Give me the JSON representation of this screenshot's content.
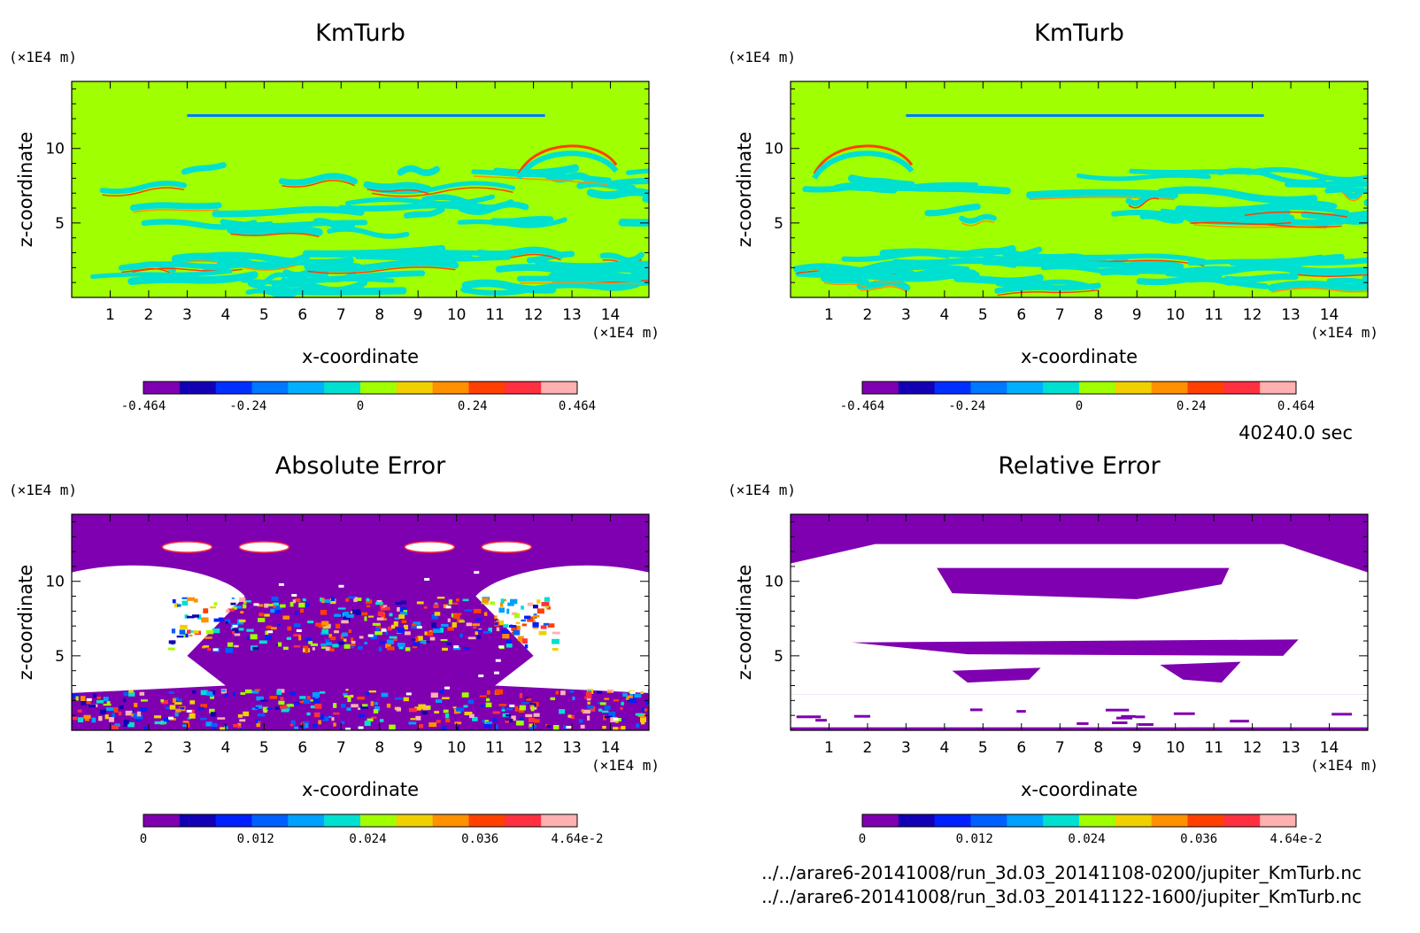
{
  "time_label": "40240.0 sec",
  "files": [
    "../../arare6-20141008/run_3d.03_20141108-0200/jupiter_KmTurb.nc",
    "../../arare6-20141008/run_3d.03_20141122-1600/jupiter_KmTurb.nc"
  ],
  "colors": {
    "kmturb_scale": [
      "#7f00b0",
      "#1400b4",
      "#0030ff",
      "#0078ff",
      "#00b0ff",
      "#00e0d0",
      "#a0ff00",
      "#f0d000",
      "#ff9000",
      "#ff4000",
      "#ff3040",
      "#ffb0b0"
    ],
    "error_scale": [
      "#7f00b0",
      "#1400b4",
      "#0020ff",
      "#0060ff",
      "#00a0ff",
      "#00e0d0",
      "#a0ff00",
      "#f0d000",
      "#ff9000",
      "#ff4000",
      "#ff3040",
      "#ffb0b0"
    ],
    "background_kmturb": "#a0ff00",
    "background_error": "#7f00b0"
  },
  "chart_data": [
    {
      "type": "heatmap",
      "title": "KmTurb",
      "xlabel": "x-coordinate",
      "ylabel": "z-coordinate",
      "x_unit": "(×1E4 m)",
      "y_unit": "(×1E4 m)",
      "xlim": [
        0,
        15
      ],
      "ylim": [
        0,
        14.5
      ],
      "xticks": [
        "1",
        "2",
        "3",
        "4",
        "5",
        "6",
        "7",
        "8",
        "9",
        "10",
        "11",
        "12",
        "13",
        "14"
      ],
      "yticks": [
        "5",
        "10"
      ],
      "colorbar_ticks": [
        "-0.464",
        "-0.24",
        "0",
        "0.24",
        "0.464"
      ],
      "colorbar_range": [
        -0.464,
        0.464
      ]
    },
    {
      "type": "heatmap",
      "title": "KmTurb",
      "xlabel": "x-coordinate",
      "ylabel": "z-coordinate",
      "x_unit": "(×1E4 m)",
      "y_unit": "(×1E4 m)",
      "xlim": [
        0,
        15
      ],
      "ylim": [
        0,
        14.5
      ],
      "xticks": [
        "1",
        "2",
        "3",
        "4",
        "5",
        "6",
        "7",
        "8",
        "9",
        "10",
        "11",
        "12",
        "13",
        "14"
      ],
      "yticks": [
        "5",
        "10"
      ],
      "colorbar_ticks": [
        "-0.464",
        "-0.24",
        "0",
        "0.24",
        "0.464"
      ],
      "colorbar_range": [
        -0.464,
        0.464
      ]
    },
    {
      "type": "heatmap",
      "title": "Absolute Error",
      "xlabel": "x-coordinate",
      "ylabel": "z-coordinate",
      "x_unit": "(×1E4 m)",
      "y_unit": "(×1E4 m)",
      "xlim": [
        0,
        15
      ],
      "ylim": [
        0,
        14.5
      ],
      "xticks": [
        "1",
        "2",
        "3",
        "4",
        "5",
        "6",
        "7",
        "8",
        "9",
        "10",
        "11",
        "12",
        "13",
        "14"
      ],
      "yticks": [
        "5",
        "10"
      ],
      "colorbar_ticks": [
        "0",
        "0.012",
        "0.024",
        "0.036",
        "4.64e-2"
      ],
      "colorbar_range": [
        0,
        0.0464
      ]
    },
    {
      "type": "heatmap",
      "title": "Relative Error",
      "xlabel": "x-coordinate",
      "ylabel": "z-coordinate",
      "x_unit": "(×1E4 m)",
      "y_unit": "(×1E4 m)",
      "xlim": [
        0,
        15
      ],
      "ylim": [
        0,
        14.5
      ],
      "xticks": [
        "1",
        "2",
        "3",
        "4",
        "5",
        "6",
        "7",
        "8",
        "9",
        "10",
        "11",
        "12",
        "13",
        "14"
      ],
      "yticks": [
        "5",
        "10"
      ],
      "colorbar_ticks": [
        "0",
        "0.012",
        "0.024",
        "0.036",
        "4.64e-2"
      ],
      "colorbar_range": [
        0,
        0.0464
      ]
    }
  ]
}
